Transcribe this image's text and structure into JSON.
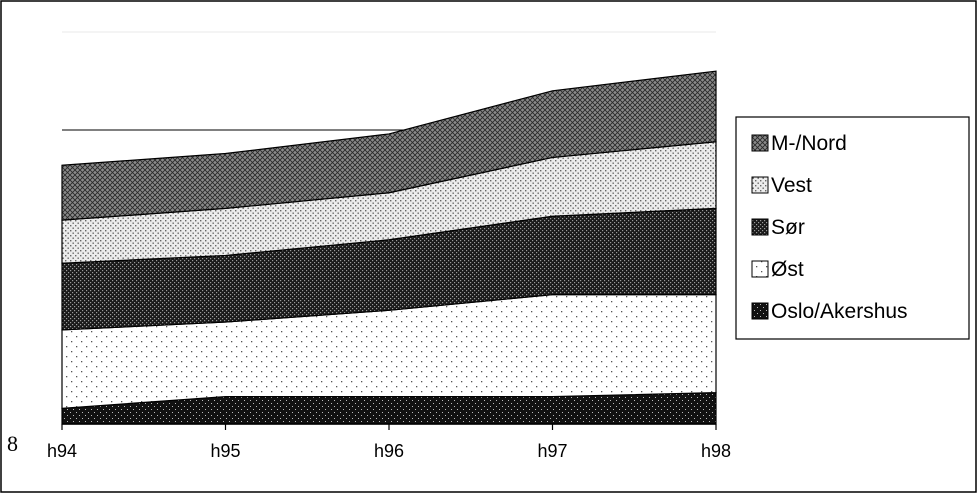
{
  "stray_label": "8",
  "chart_data": {
    "type": "area",
    "stacked": true,
    "title": "",
    "xlabel": "",
    "ylabel": "",
    "categories": [
      "h94",
      "h95",
      "h96",
      "h97",
      "h98"
    ],
    "ylim": [
      0,
      100
    ],
    "grid": true,
    "legend_position": "right",
    "series": [
      {
        "name": "Oslo/Akershus",
        "values": [
          4,
          7,
          7,
          7,
          8
        ]
      },
      {
        "name": "Øst",
        "values": [
          20,
          19,
          22,
          26,
          25
        ]
      },
      {
        "name": "Sør",
        "values": [
          17,
          17,
          18,
          20,
          22
        ]
      },
      {
        "name": "Vest",
        "values": [
          11,
          12,
          12,
          15,
          17
        ]
      },
      {
        "name": "M-/Nord",
        "values": [
          14,
          14,
          15,
          17,
          18
        ]
      }
    ],
    "legend_order": [
      "M-/Nord",
      "Vest",
      "Sør",
      "Øst",
      "Oslo/Akershus"
    ]
  }
}
